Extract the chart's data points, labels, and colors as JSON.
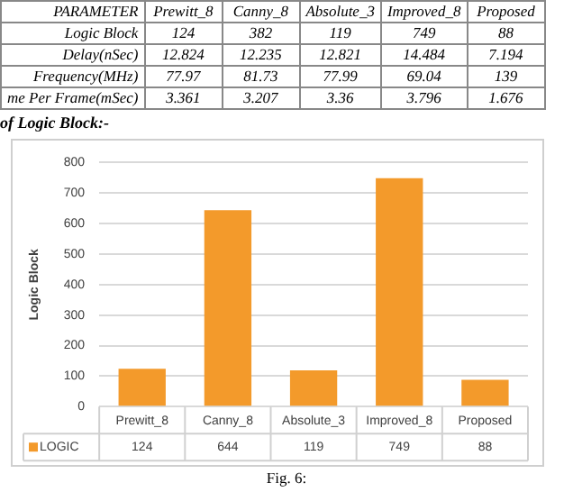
{
  "chart_data": {
    "type": "bar",
    "ylabel": "Logic Block",
    "categories": [
      "Prewitt_8",
      "Canny_8",
      "Absolute_3",
      "Improved_8",
      "Proposed"
    ],
    "series": [
      {
        "name": "LOGIC",
        "color": "#f39a2b",
        "values": [
          124,
          644,
          119,
          749,
          88
        ]
      }
    ],
    "ylim": [
      0,
      800
    ],
    "yticks": [
      0,
      100,
      200,
      300,
      400,
      500,
      600,
      700,
      800
    ],
    "grid": "y",
    "legend": "bottom left",
    "data_labels": true,
    "annotations": [
      "PARAMETER",
      "Prewitt_8",
      "Canny_8",
      "Absolute_3",
      "Improved_8",
      "Proposed",
      "Logic Block",
      "124",
      "382",
      "119",
      "749",
      "88",
      "Delay(nSec)",
      "12.824",
      "12.235",
      "12.821",
      "14.484",
      "7.194",
      "Frequency(MHz)",
      "77.97",
      "81.73",
      "77.99",
      "69.04",
      "139",
      "me Per Frame(mSec)",
      "3.361",
      "3.207",
      "3.36",
      "3.796",
      "1.676",
      "of Logic Block:-",
      "Fig. 6:"
    ]
  }
}
